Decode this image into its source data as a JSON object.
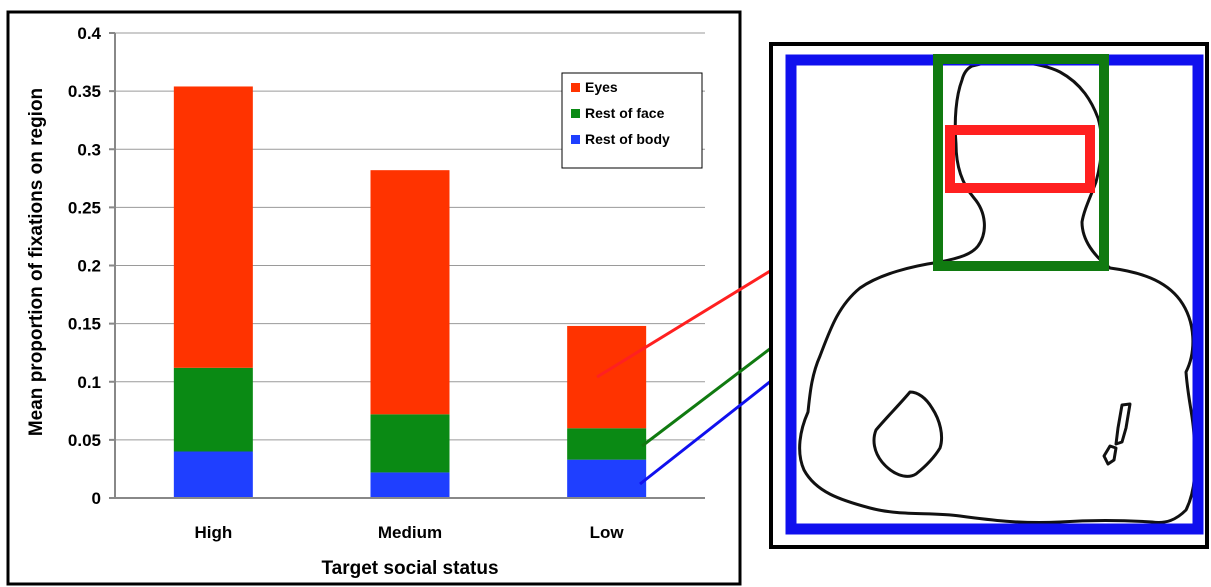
{
  "chart_data": {
    "type": "bar",
    "stacked": true,
    "title": "",
    "xlabel": "Target social status",
    "ylabel": "Mean proportion of fixations on region",
    "categories": [
      "High",
      "Medium",
      "Low"
    ],
    "ylim": [
      0,
      0.4
    ],
    "yticks": [
      "0",
      "0.05",
      "0.1",
      "0.15",
      "0.2",
      "0.25",
      "0.3",
      "0.35",
      "0.4"
    ],
    "grid": true,
    "legend_position": "top-right",
    "series": [
      {
        "name": "Rest of body",
        "color": "#1f3fff",
        "values": [
          0.04,
          0.022,
          0.033
        ]
      },
      {
        "name": "Rest of face",
        "color": "#0a8a14",
        "values": [
          0.072,
          0.05,
          0.027
        ]
      },
      {
        "name": "Eyes",
        "color": "#ff3300",
        "values": [
          0.242,
          0.21,
          0.088
        ]
      }
    ],
    "legend_order": [
      "Eyes",
      "Rest of face",
      "Rest of body"
    ]
  },
  "diagram": {
    "icon": "person-silhouette-icon",
    "region_colors": {
      "eyes": "#ff2020",
      "face": "#107a10",
      "body": "#1010ee"
    }
  }
}
